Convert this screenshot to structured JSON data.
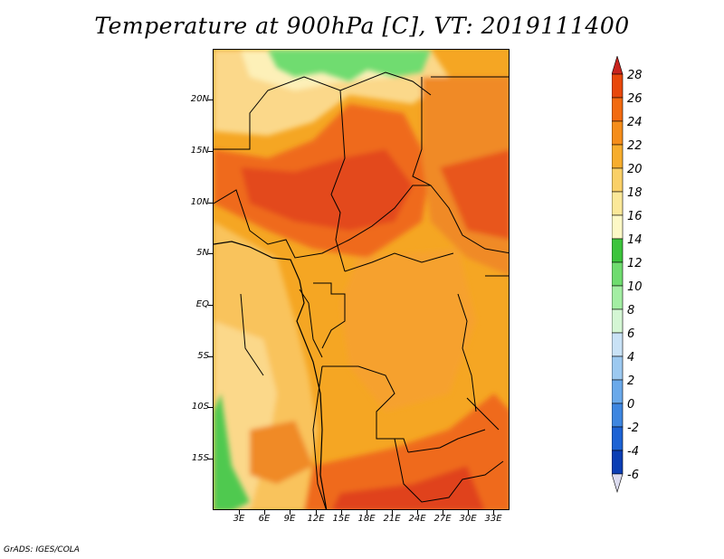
{
  "title": "Temperature at 900hPa [C], VT: 2019111400",
  "footer": "GrADS: IGES/COLA",
  "map": {
    "y_ticks": [
      "20N",
      "15N",
      "10N",
      "5N",
      "EQ",
      "5S",
      "10S",
      "15S"
    ],
    "x_ticks": [
      "3E",
      "6E",
      "9E",
      "12E",
      "15E",
      "18E",
      "21E",
      "24E",
      "27E",
      "30E",
      "33E"
    ],
    "variable": "Temperature",
    "level": "900hPa",
    "units": "C"
  },
  "colorbar": {
    "labels": [
      "28",
      "26",
      "24",
      "22",
      "20",
      "18",
      "16",
      "14",
      "12",
      "10",
      "8",
      "6",
      "4",
      "2",
      "0",
      "-2",
      "-4",
      "-6"
    ],
    "colors": [
      "#d62d0a",
      "#e8480b",
      "#f26a10",
      "#f58d1a",
      "#f7ad2d",
      "#fad067",
      "#fbe899",
      "#fdf8c6",
      "#3cc43c",
      "#6fdc6f",
      "#a3eea3",
      "#d4f6d4",
      "#c9e2f6",
      "#9cc9f0",
      "#6aa9ea",
      "#3e86e0",
      "#1c62d4",
      "#0b3eb4",
      "#082580",
      "#0a0a50"
    ],
    "over_color": "#c8241e",
    "under_color": "#dcdcf0"
  }
}
